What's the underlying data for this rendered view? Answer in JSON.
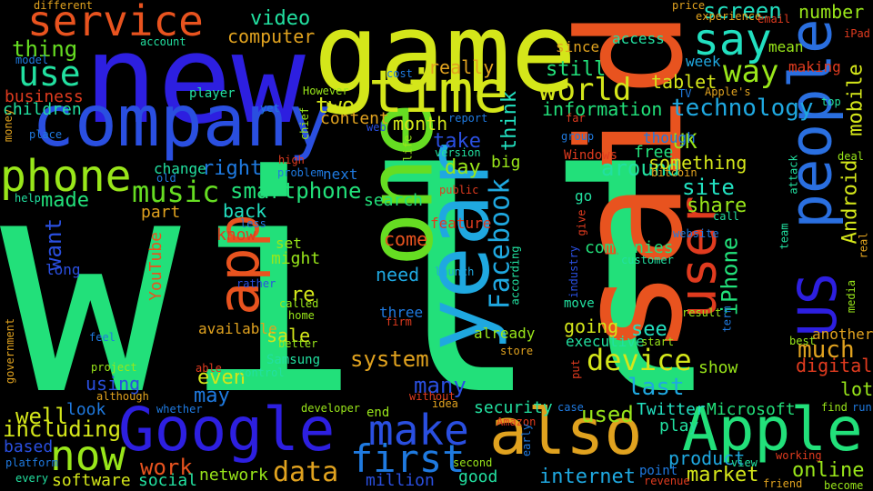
{
  "words": [
    {
      "text": "will",
      "color": "#22e07a",
      "orientation": "horizontal"
    },
    {
      "text": "said",
      "color": "#e8531f",
      "orientation": "vertical"
    },
    {
      "text": "new",
      "color": "#2d1fe0",
      "orientation": "horizontal"
    },
    {
      "text": "game",
      "color": "#d4e61a",
      "orientation": "horizontal"
    },
    {
      "text": "one",
      "color": "#66dd22",
      "orientation": "vertical"
    },
    {
      "text": "year",
      "color": "#1fa8e0",
      "orientation": "vertical"
    },
    {
      "text": "company",
      "color": "#2a4fe0",
      "orientation": "horizontal"
    },
    {
      "text": "people",
      "color": "#2a6fe0",
      "orientation": "vertical"
    },
    {
      "text": "Google",
      "color": "#2d1fe0",
      "orientation": "horizontal"
    },
    {
      "text": "Apple",
      "color": "#22e07a",
      "orientation": "horizontal"
    },
    {
      "text": "also",
      "color": "#e0a21f",
      "orientation": "horizontal"
    },
    {
      "text": "app",
      "color": "#e8531f",
      "orientation": "vertical"
    },
    {
      "text": "time",
      "color": "#d4e61a",
      "orientation": "horizontal"
    },
    {
      "text": "user",
      "color": "#e03b1f",
      "orientation": "vertical"
    },
    {
      "text": "US",
      "color": "#2d1fe0",
      "orientation": "vertical"
    },
    {
      "text": "phone",
      "color": "#99e61a",
      "orientation": "horizontal"
    },
    {
      "text": "service",
      "color": "#e8531f",
      "orientation": "horizontal"
    },
    {
      "text": "make",
      "color": "#2a4fe0",
      "orientation": "horizontal"
    },
    {
      "text": "now",
      "color": "#99e61a",
      "orientation": "horizontal"
    },
    {
      "text": "say",
      "color": "#22e0c0",
      "orientation": "horizontal"
    },
    {
      "text": "first",
      "color": "#1f7ae0",
      "orientation": "horizontal"
    },
    {
      "text": "way",
      "color": "#99e61a",
      "orientation": "horizontal"
    },
    {
      "text": "use",
      "color": "#22e0a0",
      "orientation": "horizontal"
    },
    {
      "text": "Facebook",
      "color": "#1fa8e0",
      "orientation": "vertical"
    },
    {
      "text": "world",
      "color": "#d4e61a",
      "orientation": "horizontal"
    },
    {
      "text": "device",
      "color": "#d4e61a",
      "orientation": "horizontal"
    },
    {
      "text": "music",
      "color": "#66dd22",
      "orientation": "horizontal"
    },
    {
      "text": "data",
      "color": "#e0a21f",
      "orientation": "horizontal"
    },
    {
      "text": "smartphone",
      "color": "#22e07a",
      "orientation": "horizontal"
    },
    {
      "text": "technology",
      "color": "#1fa8e0",
      "orientation": "horizontal"
    },
    {
      "text": "iPhone",
      "color": "#22e07a",
      "orientation": "vertical"
    },
    {
      "text": "Android",
      "color": "#d4e61a",
      "orientation": "vertical"
    },
    {
      "text": "mobile",
      "color": "#d4e61a",
      "orientation": "vertical"
    },
    {
      "text": "screen",
      "color": "#22e0c0",
      "orientation": "horizontal"
    },
    {
      "text": "video",
      "color": "#22e0a0",
      "orientation": "horizontal"
    },
    {
      "text": "computer",
      "color": "#e0a21f",
      "orientation": "horizontal"
    },
    {
      "text": "thing",
      "color": "#66dd22",
      "orientation": "horizontal"
    },
    {
      "text": "business",
      "color": "#e03b1f",
      "orientation": "horizontal"
    },
    {
      "text": "children",
      "color": "#22e0a0",
      "orientation": "horizontal"
    },
    {
      "text": "two",
      "color": "#d4e61a",
      "orientation": "horizontal"
    },
    {
      "text": "content",
      "color": "#e0a21f",
      "orientation": "horizontal"
    },
    {
      "text": "month",
      "color": "#d4e61a",
      "orientation": "horizontal"
    },
    {
      "text": "think",
      "color": "#22e0c0",
      "orientation": "vertical"
    },
    {
      "text": "really",
      "color": "#e0a21f",
      "orientation": "horizontal"
    },
    {
      "text": "still",
      "color": "#22e07a",
      "orientation": "horizontal"
    },
    {
      "text": "information",
      "color": "#22e07a",
      "orientation": "horizontal"
    },
    {
      "text": "tablet",
      "color": "#d4e61a",
      "orientation": "horizontal"
    },
    {
      "text": "number",
      "color": "#99e61a",
      "orientation": "horizontal"
    },
    {
      "text": "access",
      "color": "#22e0a0",
      "orientation": "horizontal"
    },
    {
      "text": "since",
      "color": "#e0a21f",
      "orientation": "horizontal"
    },
    {
      "text": "week",
      "color": "#1fa8e0",
      "orientation": "horizontal"
    },
    {
      "text": "mean",
      "color": "#99e61a",
      "orientation": "horizontal"
    },
    {
      "text": "making",
      "color": "#e03b1f",
      "orientation": "horizontal"
    },
    {
      "text": "take",
      "color": "#2a4fe0",
      "orientation": "horizontal"
    },
    {
      "text": "day",
      "color": "#99e61a",
      "orientation": "horizontal"
    },
    {
      "text": "around",
      "color": "#22e0a0",
      "orientation": "horizontal"
    },
    {
      "text": "UK",
      "color": "#99e61a",
      "orientation": "horizontal"
    },
    {
      "text": "something",
      "color": "#d4e61a",
      "orientation": "horizontal"
    },
    {
      "text": "free",
      "color": "#22e07a",
      "orientation": "horizontal"
    },
    {
      "text": "though",
      "color": "#1f7ae0",
      "orientation": "horizontal"
    },
    {
      "text": "site",
      "color": "#22e0c0",
      "orientation": "horizontal"
    },
    {
      "text": "share",
      "color": "#99e61a",
      "orientation": "horizontal"
    },
    {
      "text": "big",
      "color": "#99e61a",
      "orientation": "horizontal"
    },
    {
      "text": "right",
      "color": "#1f7ae0",
      "orientation": "horizontal"
    },
    {
      "text": "made",
      "color": "#22e07a",
      "orientation": "horizontal"
    },
    {
      "text": "part",
      "color": "#e0a21f",
      "orientation": "horizontal"
    },
    {
      "text": "back",
      "color": "#22e0c0",
      "orientation": "horizontal"
    },
    {
      "text": "know",
      "color": "#e03b1f",
      "orientation": "horizontal"
    },
    {
      "text": "want",
      "color": "#2a4fe0",
      "orientation": "vertical"
    },
    {
      "text": "search",
      "color": "#22e07a",
      "orientation": "horizontal"
    },
    {
      "text": "come",
      "color": "#e8531f",
      "orientation": "horizontal"
    },
    {
      "text": "need",
      "color": "#1fa8e0",
      "orientation": "horizontal"
    },
    {
      "text": "companies",
      "color": "#22e07a",
      "orientation": "horizontal"
    },
    {
      "text": "might",
      "color": "#99e61a",
      "orientation": "horizontal"
    },
    {
      "text": "re",
      "color": "#d4e61a",
      "orientation": "horizontal"
    },
    {
      "text": "three",
      "color": "#1f7ae0",
      "orientation": "horizontal"
    },
    {
      "text": "going",
      "color": "#d4e61a",
      "orientation": "horizontal"
    },
    {
      "text": "see",
      "color": "#22e0c0",
      "orientation": "horizontal"
    },
    {
      "text": "much",
      "color": "#e0a21f",
      "orientation": "horizontal"
    },
    {
      "text": "system",
      "color": "#e0a21f",
      "orientation": "horizontal"
    },
    {
      "text": "sale",
      "color": "#d4e61a",
      "orientation": "horizontal"
    },
    {
      "text": "digital",
      "color": "#e03b1f",
      "orientation": "horizontal"
    },
    {
      "text": "many",
      "color": "#2a4fe0",
      "orientation": "horizontal"
    },
    {
      "text": "even",
      "color": "#d4e61a",
      "orientation": "horizontal"
    },
    {
      "text": "using",
      "color": "#2a4fe0",
      "orientation": "horizontal"
    },
    {
      "text": "may",
      "color": "#1f7ae0",
      "orientation": "horizontal"
    },
    {
      "text": "last",
      "color": "#1fa8e0",
      "orientation": "horizontal"
    },
    {
      "text": "show",
      "color": "#99e61a",
      "orientation": "horizontal"
    },
    {
      "text": "lot",
      "color": "#99e61a",
      "orientation": "horizontal"
    },
    {
      "text": "well",
      "color": "#d4e61a",
      "orientation": "horizontal"
    },
    {
      "text": "look",
      "color": "#1f7ae0",
      "orientation": "horizontal"
    },
    {
      "text": "including",
      "color": "#d4e61a",
      "orientation": "horizontal"
    },
    {
      "text": "based",
      "color": "#2a4fe0",
      "orientation": "horizontal"
    },
    {
      "text": "used",
      "color": "#99e61a",
      "orientation": "horizontal"
    },
    {
      "text": "security",
      "color": "#22e0a0",
      "orientation": "horizontal"
    },
    {
      "text": "play",
      "color": "#22e0a0",
      "orientation": "horizontal"
    },
    {
      "text": "Twitter",
      "color": "#22e0c0",
      "orientation": "horizontal"
    },
    {
      "text": "Microsoft",
      "color": "#22e07a",
      "orientation": "horizontal"
    },
    {
      "text": "work",
      "color": "#e8531f",
      "orientation": "horizontal"
    },
    {
      "text": "software",
      "color": "#d4e61a",
      "orientation": "horizontal"
    },
    {
      "text": "social",
      "color": "#22e0a0",
      "orientation": "horizontal"
    },
    {
      "text": "network",
      "color": "#99e61a",
      "orientation": "horizontal"
    },
    {
      "text": "product",
      "color": "#1fa8e0",
      "orientation": "horizontal"
    },
    {
      "text": "internet",
      "color": "#1fa8e0",
      "orientation": "horizontal"
    },
    {
      "text": "market",
      "color": "#d4e61a",
      "orientation": "horizontal"
    },
    {
      "text": "online",
      "color": "#99e61a",
      "orientation": "horizontal"
    },
    {
      "text": "good",
      "color": "#22e0a0",
      "orientation": "horizontal"
    },
    {
      "text": "million",
      "color": "#2a4fe0",
      "orientation": "horizontal"
    },
    {
      "text": "YouTube",
      "color": "#e8531f",
      "orientation": "vertical"
    },
    {
      "text": "executive",
      "color": "#22e0a0",
      "orientation": "horizontal"
    },
    {
      "text": "available",
      "color": "#e0a21f",
      "orientation": "horizontal"
    },
    {
      "text": "already",
      "color": "#99e61a",
      "orientation": "horizontal"
    },
    {
      "text": "feature",
      "color": "#e03b1f",
      "orientation": "horizontal"
    },
    {
      "text": "another",
      "color": "#e0a21f",
      "orientation": "horizontal"
    },
    {
      "text": "Samsung",
      "color": "#22e0a0",
      "orientation": "horizontal"
    },
    {
      "text": "point",
      "color": "#1f7ae0",
      "orientation": "horizontal"
    },
    {
      "text": "set",
      "color": "#99e61a",
      "orientation": "horizontal"
    },
    {
      "text": "change",
      "color": "#22e0a0",
      "orientation": "horizontal"
    },
    {
      "text": "next",
      "color": "#1f7ae0",
      "orientation": "horizontal"
    },
    {
      "text": "go",
      "color": "#22e0a0",
      "orientation": "horizontal"
    },
    {
      "text": "different",
      "color": "#e0a21f",
      "orientation": "horizontal"
    },
    {
      "text": "price",
      "color": "#e0a21f",
      "orientation": "horizontal"
    },
    {
      "text": "experience",
      "color": "#e0a21f",
      "orientation": "horizontal"
    },
    {
      "text": "email",
      "color": "#e03b1f",
      "orientation": "horizontal"
    },
    {
      "text": "model",
      "color": "#1f7ae0",
      "orientation": "horizontal"
    },
    {
      "text": "account",
      "color": "#22e0a0",
      "orientation": "horizontal"
    },
    {
      "text": "player",
      "color": "#22e0a0",
      "orientation": "horizontal"
    },
    {
      "text": "However",
      "color": "#99e61a",
      "orientation": "horizontal"
    },
    {
      "text": "cost",
      "color": "#1f7ae0",
      "orientation": "horizontal"
    },
    {
      "text": "report",
      "color": "#1f7ae0",
      "orientation": "horizontal"
    },
    {
      "text": "chief",
      "color": "#99e61a",
      "orientation": "vertical"
    },
    {
      "text": "web",
      "color": "#2a4fe0",
      "orientation": "horizontal"
    },
    {
      "text": "life",
      "color": "#99e61a",
      "orientation": "vertical"
    },
    {
      "text": "version",
      "color": "#22e0a0",
      "orientation": "horizontal"
    },
    {
      "text": "group",
      "color": "#1f7ae0",
      "orientation": "horizontal"
    },
    {
      "text": "Windows",
      "color": "#e03b1f",
      "orientation": "horizontal"
    },
    {
      "text": "bitcoin",
      "color": "#e0a21f",
      "orientation": "horizontal"
    },
    {
      "text": "iPad",
      "color": "#e03b1f",
      "orientation": "horizontal"
    },
    {
      "text": "TV",
      "color": "#1f7ae0",
      "orientation": "horizontal"
    },
    {
      "text": "Apple's",
      "color": "#e0a21f",
      "orientation": "horizontal"
    },
    {
      "text": "far",
      "color": "#e03b1f",
      "orientation": "horizontal"
    },
    {
      "text": "top",
      "color": "#22e0a0",
      "orientation": "horizontal"
    },
    {
      "text": "money",
      "color": "#e0a21f",
      "orientation": "vertical"
    },
    {
      "text": "place",
      "color": "#1f7ae0",
      "orientation": "horizontal"
    },
    {
      "text": "yet",
      "color": "#1f7ae0",
      "orientation": "horizontal"
    },
    {
      "text": "old",
      "color": "#1f7ae0",
      "orientation": "horizontal"
    },
    {
      "text": "high",
      "color": "#e03b1f",
      "orientation": "horizontal"
    },
    {
      "text": "problem",
      "color": "#1f7ae0",
      "orientation": "horizontal"
    },
    {
      "text": "public",
      "color": "#e03b1f",
      "orientation": "horizontal"
    },
    {
      "text": "help",
      "color": "#22e0a0",
      "orientation": "horizontal"
    },
    {
      "text": "less",
      "color": "#1f7ae0",
      "orientation": "horizontal"
    },
    {
      "text": "give",
      "color": "#e03b1f",
      "orientation": "vertical"
    },
    {
      "text": "website",
      "color": "#1f7ae0",
      "orientation": "horizontal"
    },
    {
      "text": "call",
      "color": "#22e0a0",
      "orientation": "horizontal"
    },
    {
      "text": "team",
      "color": "#22e0a0",
      "orientation": "vertical"
    },
    {
      "text": "real",
      "color": "#e0a21f",
      "orientation": "vertical"
    },
    {
      "text": "deal",
      "color": "#99e61a",
      "orientation": "horizontal"
    },
    {
      "text": "attack",
      "color": "#22e0a0",
      "orientation": "vertical"
    },
    {
      "text": "long",
      "color": "#2a4fe0",
      "orientation": "horizontal"
    },
    {
      "text": "rather",
      "color": "#2a4fe0",
      "orientation": "horizontal"
    },
    {
      "text": "industry",
      "color": "#2a4fe0",
      "orientation": "vertical"
    },
    {
      "text": "customer",
      "color": "#22e0a0",
      "orientation": "horizontal"
    },
    {
      "text": "launch",
      "color": "#1fa8e0",
      "orientation": "horizontal"
    },
    {
      "text": "according",
      "color": "#22e0a0",
      "orientation": "vertical"
    },
    {
      "text": "called",
      "color": "#99e61a",
      "orientation": "horizontal"
    },
    {
      "text": "home",
      "color": "#99e61a",
      "orientation": "horizontal"
    },
    {
      "text": "firm",
      "color": "#e03b1f",
      "orientation": "horizontal"
    },
    {
      "text": "move",
      "color": "#22e0a0",
      "orientation": "horizontal"
    },
    {
      "text": "result",
      "color": "#99e61a",
      "orientation": "horizontal"
    },
    {
      "text": "term",
      "color": "#1f7ae0",
      "orientation": "vertical"
    },
    {
      "text": "media",
      "color": "#99e61a",
      "orientation": "vertical"
    },
    {
      "text": "feel",
      "color": "#1f7ae0",
      "orientation": "horizontal"
    },
    {
      "text": "better",
      "color": "#99e61a",
      "orientation": "horizontal"
    },
    {
      "text": "store",
      "color": "#e0a21f",
      "orientation": "horizontal"
    },
    {
      "text": "start",
      "color": "#99e61a",
      "orientation": "horizontal"
    },
    {
      "text": "best",
      "color": "#99e61a",
      "orientation": "horizontal"
    },
    {
      "text": "government",
      "color": "#e0a21f",
      "orientation": "vertical"
    },
    {
      "text": "project",
      "color": "#99e61a",
      "orientation": "horizontal"
    },
    {
      "text": "able",
      "color": "#e03b1f",
      "orientation": "horizontal"
    },
    {
      "text": "control",
      "color": "#22e0a0",
      "orientation": "horizontal"
    },
    {
      "text": "put",
      "color": "#e03b1f",
      "orientation": "vertical"
    },
    {
      "text": "although",
      "color": "#e0a21f",
      "orientation": "horizontal"
    },
    {
      "text": "whether",
      "color": "#1f7ae0",
      "orientation": "horizontal"
    },
    {
      "text": "without",
      "color": "#e03b1f",
      "orientation": "horizontal"
    },
    {
      "text": "idea",
      "color": "#e0a21f",
      "orientation": "horizontal"
    },
    {
      "text": "case",
      "color": "#1f7ae0",
      "orientation": "horizontal"
    },
    {
      "text": "developer",
      "color": "#99e61a",
      "orientation": "horizontal"
    },
    {
      "text": "end",
      "color": "#99e61a",
      "orientation": "horizontal"
    },
    {
      "text": "find",
      "color": "#99e61a",
      "orientation": "horizontal"
    },
    {
      "text": "run",
      "color": "#1f7ae0",
      "orientation": "horizontal"
    },
    {
      "text": "Amazon",
      "color": "#e03b1f",
      "orientation": "horizontal"
    },
    {
      "text": "early",
      "color": "#1f7ae0",
      "orientation": "vertical"
    },
    {
      "text": "platform",
      "color": "#1f7ae0",
      "orientation": "horizontal"
    },
    {
      "text": "every",
      "color": "#22e0a0",
      "orientation": "horizontal"
    },
    {
      "text": "second",
      "color": "#99e61a",
      "orientation": "horizontal"
    },
    {
      "text": "revenue",
      "color": "#e03b1f",
      "orientation": "horizontal"
    },
    {
      "text": "view",
      "color": "#22e0a0",
      "orientation": "horizontal"
    },
    {
      "text": "working",
      "color": "#e03b1f",
      "orientation": "horizontal"
    },
    {
      "text": "friend",
      "color": "#e0a21f",
      "orientation": "horizontal"
    },
    {
      "text": "become",
      "color": "#99e61a",
      "orientation": "horizontal"
    }
  ]
}
